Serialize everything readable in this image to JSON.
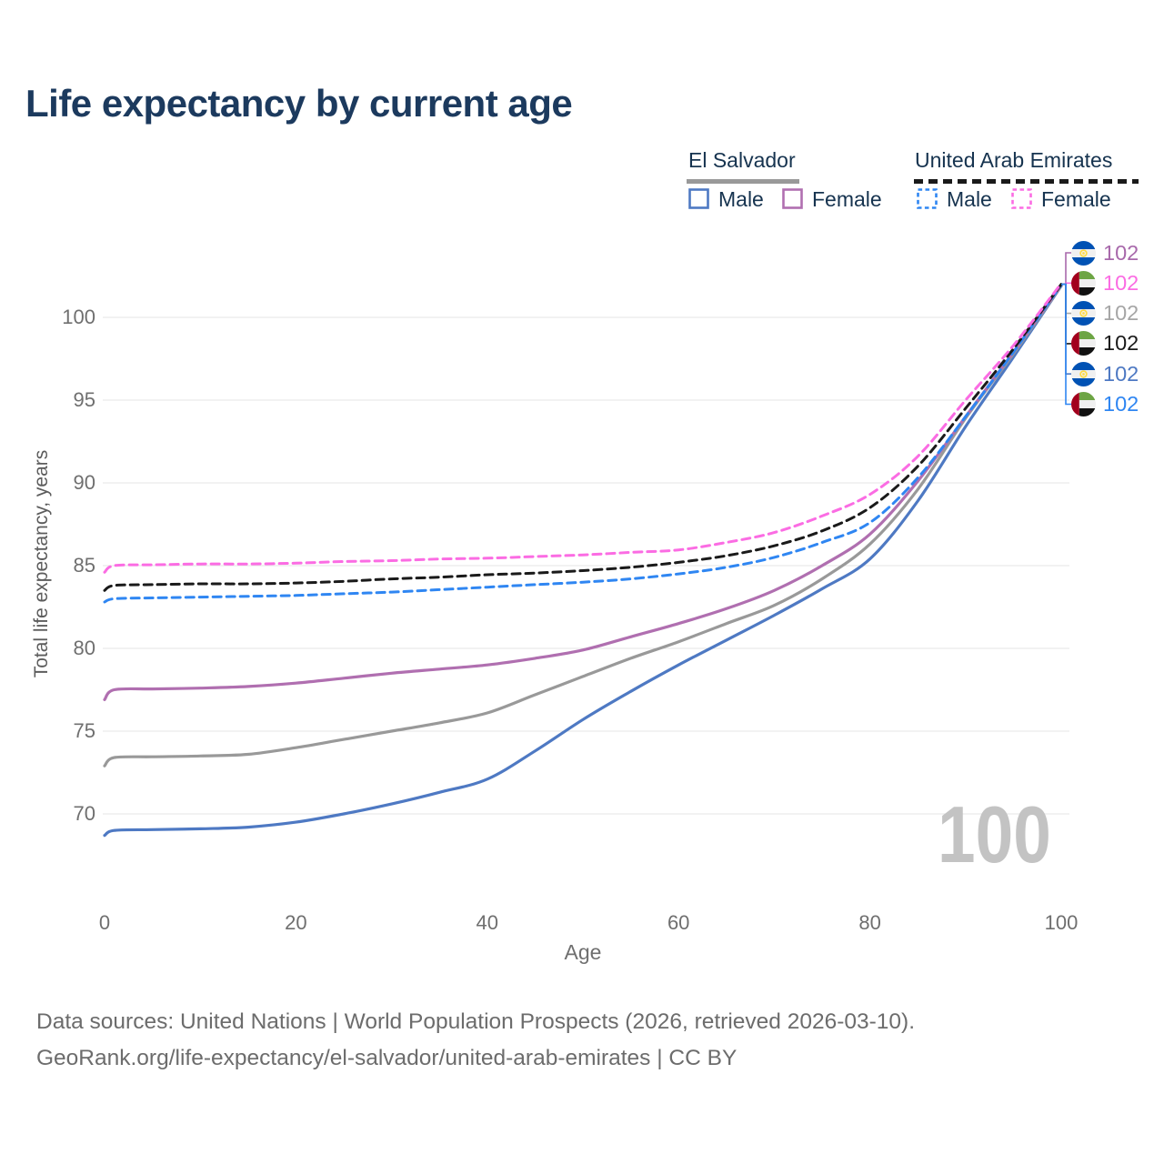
{
  "title": "Life expectancy by current age",
  "legend": {
    "groups": [
      {
        "name": "El Salvador",
        "line_style": "solid",
        "underline_color": "#999999",
        "items": [
          {
            "label": "Male",
            "color": "#4e79c3"
          },
          {
            "label": "Female",
            "color": "#b06fb0"
          }
        ]
      },
      {
        "name": "United Arab Emirates",
        "line_style": "dashed",
        "underline_color": "#1a1a1a",
        "items": [
          {
            "label": "Male",
            "color": "#2f86f2"
          },
          {
            "label": "Female",
            "color": "#fb6ce3"
          }
        ]
      }
    ]
  },
  "axes": {
    "x_label": "Age",
    "y_label": "Total life expectancy, years",
    "x_ticks": [
      0,
      20,
      40,
      60,
      80,
      100
    ],
    "y_ticks": [
      70,
      75,
      80,
      85,
      90,
      95,
      100
    ]
  },
  "watermark": "100",
  "chart_data": {
    "type": "line",
    "title": "Life expectancy by current age",
    "xlabel": "Age",
    "ylabel": "Total life expectancy, years",
    "xlim": [
      0,
      100
    ],
    "ylim": [
      67,
      103
    ],
    "grid": "horizontal",
    "legend_position": "top-right",
    "x": [
      0,
      1,
      5,
      10,
      15,
      20,
      25,
      30,
      35,
      40,
      45,
      50,
      55,
      60,
      65,
      70,
      75,
      80,
      85,
      90,
      95,
      100
    ],
    "series": [
      {
        "name": "El Salvador Male",
        "color": "#4e79c3",
        "dashed": false,
        "end_label": "102",
        "values": [
          68.7,
          69.0,
          69.05,
          69.1,
          69.2,
          69.5,
          70.0,
          70.6,
          71.3,
          72.1,
          73.8,
          75.7,
          77.4,
          79.0,
          80.5,
          82.0,
          83.6,
          85.4,
          88.9,
          93.4,
          97.6,
          101.9
        ]
      },
      {
        "name": "El Salvador",
        "color": "#999999",
        "dashed": false,
        "end_label": "102",
        "values": [
          72.9,
          73.4,
          73.45,
          73.5,
          73.6,
          74.0,
          74.5,
          75.0,
          75.5,
          76.1,
          77.2,
          78.3,
          79.4,
          80.4,
          81.5,
          82.6,
          84.2,
          86.3,
          89.6,
          93.9,
          97.8,
          101.9
        ]
      },
      {
        "name": "El Salvador Female",
        "color": "#b06fb0",
        "dashed": false,
        "end_label": "102",
        "values": [
          76.9,
          77.5,
          77.55,
          77.6,
          77.7,
          77.9,
          78.2,
          78.5,
          78.75,
          79.0,
          79.4,
          79.9,
          80.7,
          81.5,
          82.4,
          83.5,
          85.0,
          86.9,
          90.1,
          94.0,
          97.9,
          101.95
        ]
      },
      {
        "name": "United Arab Emirates Male",
        "color": "#2f86f2",
        "dashed": true,
        "end_label": "102",
        "values": [
          82.8,
          83.0,
          83.05,
          83.1,
          83.15,
          83.2,
          83.3,
          83.4,
          83.55,
          83.7,
          83.85,
          84.0,
          84.2,
          84.5,
          84.9,
          85.5,
          86.4,
          87.6,
          90.3,
          94.0,
          97.9,
          101.95
        ]
      },
      {
        "name": "United Arab Emirates",
        "color": "#1a1a1a",
        "dashed": true,
        "end_label": "102",
        "values": [
          83.5,
          83.8,
          83.85,
          83.9,
          83.9,
          83.95,
          84.05,
          84.2,
          84.3,
          84.45,
          84.55,
          84.7,
          84.9,
          85.2,
          85.6,
          86.2,
          87.1,
          88.5,
          91.0,
          94.5,
          98.1,
          102.0
        ]
      },
      {
        "name": "United Arab Emirates Female",
        "color": "#fb6ce3",
        "dashed": true,
        "end_label": "102",
        "values": [
          84.6,
          85.0,
          85.05,
          85.1,
          85.1,
          85.15,
          85.25,
          85.3,
          85.4,
          85.45,
          85.55,
          85.65,
          85.8,
          85.95,
          86.4,
          87.0,
          88.0,
          89.3,
          91.6,
          95.0,
          98.3,
          102.05
        ]
      }
    ]
  },
  "end_labels": [
    {
      "value": "102",
      "color": "#a869ab",
      "flag": "es",
      "series": "El Salvador Female"
    },
    {
      "value": "102",
      "color": "#fb6ce3",
      "flag": "ae",
      "series": "United Arab Emirates Female"
    },
    {
      "value": "102",
      "color": "#a6a6a6",
      "flag": "es",
      "series": "El Salvador"
    },
    {
      "value": "102",
      "color": "#1a1a1a",
      "flag": "ae",
      "series": "United Arab Emirates"
    },
    {
      "value": "102",
      "color": "#4e79c3",
      "flag": "es",
      "series": "El Salvador Male"
    },
    {
      "value": "102",
      "color": "#2f86f2",
      "flag": "ae",
      "series": "United Arab Emirates Male"
    }
  ],
  "footer": {
    "line1": "Data sources: United Nations | World Population Prospects (2026, retrieved 2026-03-10).",
    "line2": "GeoRank.org/life-expectancy/el-salvador/united-arab-emirates | CC BY"
  }
}
